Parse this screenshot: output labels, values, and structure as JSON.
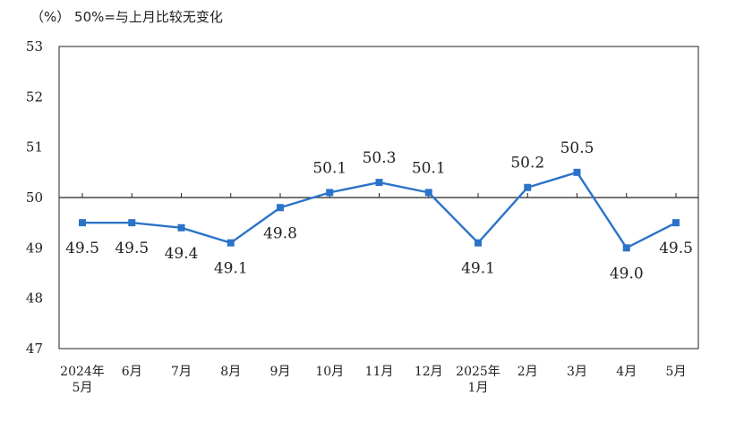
{
  "header": {
    "unit_note": "（%） 50%=与上月比较无变化"
  },
  "chart_data": {
    "type": "line",
    "title": "",
    "xlabel": "",
    "ylabel": "",
    "ylim": [
      47,
      53
    ],
    "yticks": [
      "53",
      "52",
      "51",
      "50",
      "49",
      "48",
      "47"
    ],
    "reference_line": 50,
    "grid": false,
    "categories": [
      [
        "2024年",
        "5月"
      ],
      [
        "6月"
      ],
      [
        "7月"
      ],
      [
        "8月"
      ],
      [
        "9月"
      ],
      [
        "10月"
      ],
      [
        "11月"
      ],
      [
        "12月"
      ],
      [
        "2025年",
        "1月"
      ],
      [
        "2月"
      ],
      [
        "3月"
      ],
      [
        "4月"
      ],
      [
        "5月"
      ]
    ],
    "series": [
      {
        "color": "#2b73c9",
        "values": [
          49.5,
          49.5,
          49.4,
          49.1,
          49.8,
          50.1,
          50.3,
          50.1,
          49.1,
          50.2,
          50.5,
          49.0,
          49.5
        ],
        "labels": [
          "49.5",
          "49.5",
          "49.4",
          "49.1",
          "49.8",
          "50.1",
          "50.3",
          "50.1",
          "49.1",
          "50.2",
          "50.5",
          "49.0",
          "49.5"
        ]
      }
    ]
  }
}
